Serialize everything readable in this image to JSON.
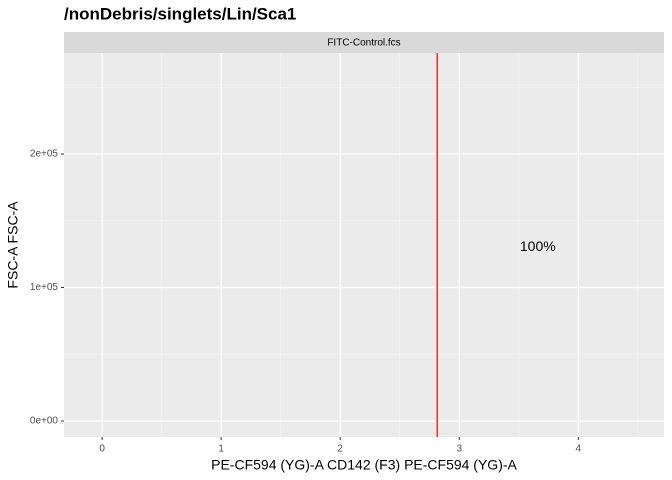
{
  "chart_data": {
    "type": "gate",
    "title": "/nonDebris/singlets/Lin/Sca1",
    "facet": "FITC-Control.fcs",
    "x_label": "PE-CF594 (YG)-A CD142 (F3) PE-CF594 (YG)-A",
    "y_label": "FSC-A FSC-A",
    "xlim": [
      -0.32,
      4.72
    ],
    "xticks": [
      0,
      1,
      2,
      3,
      4
    ],
    "ylim": [
      -12000,
      275700
    ],
    "yticks": [
      {
        "value": 0,
        "label": "0e+00"
      },
      {
        "value": 100000,
        "label": "1e+05"
      },
      {
        "value": 200000,
        "label": "2e+05"
      }
    ],
    "grid": true,
    "gate": {
      "x": 2.815,
      "color": "#ff2a2a"
    },
    "annotations": [
      {
        "text": "100%",
        "x": 3.66,
        "y": 130000
      }
    ]
  }
}
